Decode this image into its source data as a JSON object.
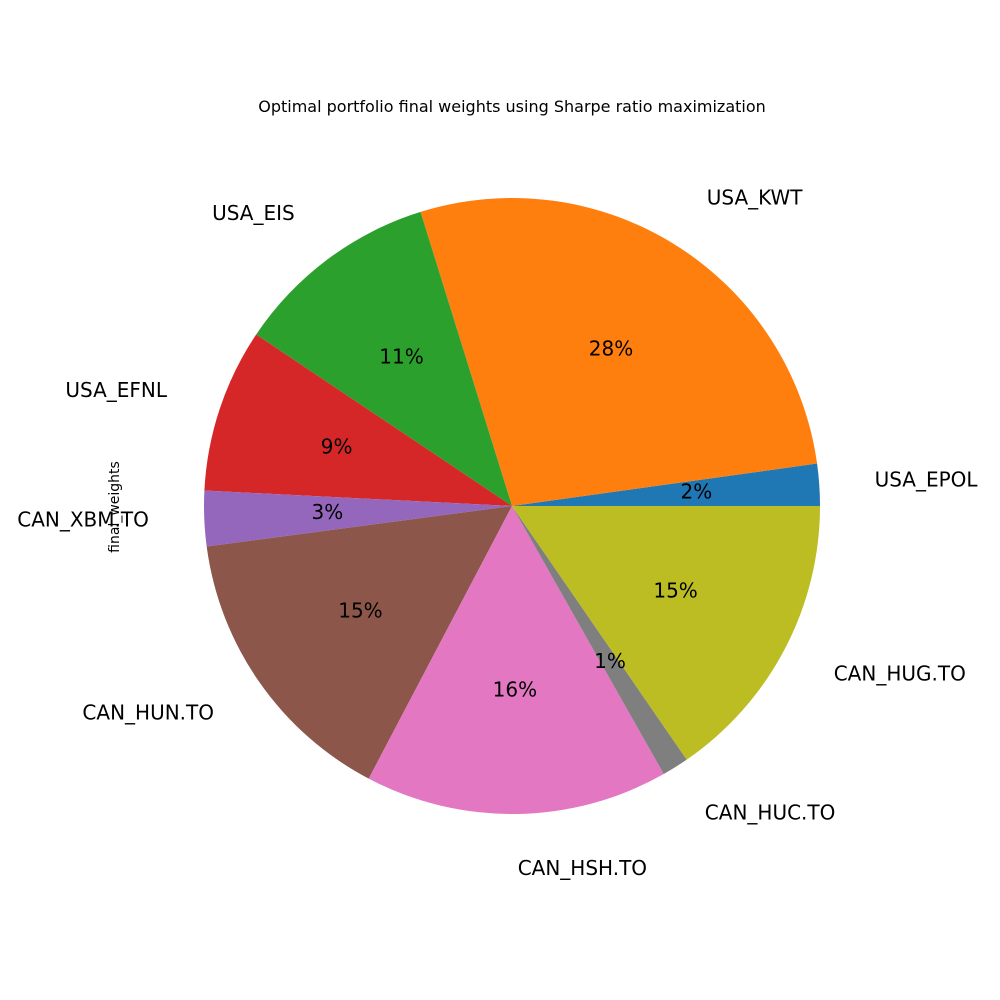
{
  "chart_data": {
    "type": "pie",
    "title": "Optimal portfolio final weights using Sharpe ratio maximization",
    "ylabel": "final_weights",
    "start_angle_deg": 0,
    "direction": "counterclockwise",
    "slices": [
      {
        "label": "USA_EPOL",
        "value": 2.2,
        "pct_label": "2%",
        "color": "#1f77b4"
      },
      {
        "label": "USA_KWT",
        "value": 27.6,
        "pct_label": "28%",
        "color": "#ff7f0e"
      },
      {
        "label": "USA_EIS",
        "value": 10.8,
        "pct_label": "11%",
        "color": "#2ca02c"
      },
      {
        "label": "USA_EFNL",
        "value": 8.6,
        "pct_label": "9%",
        "color": "#d62728"
      },
      {
        "label": "CAN_XBM.TO",
        "value": 2.9,
        "pct_label": "3%",
        "color": "#9467bd"
      },
      {
        "label": "CAN_HUN.TO",
        "value": 15.2,
        "pct_label": "15%",
        "color": "#8c564b"
      },
      {
        "label": "CAN_HSH.TO",
        "value": 15.9,
        "pct_label": "16%",
        "color": "#e377c2"
      },
      {
        "label": "CAN_HUC.TO",
        "value": 1.4,
        "pct_label": "1%",
        "color": "#7f7f7f"
      },
      {
        "label": "CAN_HUG.TO",
        "value": 15.4,
        "pct_label": "15%",
        "color": "#bcbd22"
      }
    ]
  }
}
